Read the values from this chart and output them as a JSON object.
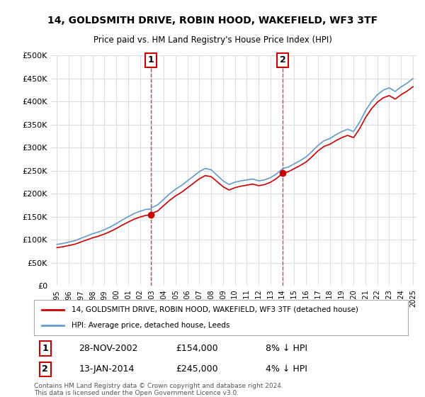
{
  "title": "14, GOLDSMITH DRIVE, ROBIN HOOD, WAKEFIELD, WF3 3TF",
  "subtitle": "Price paid vs. HM Land Registry's House Price Index (HPI)",
  "sale1_date": "28-NOV-2002",
  "sale1_price": 154000,
  "sale1_label": "1",
  "sale1_hpi_pct": "8% ↓ HPI",
  "sale2_date": "13-JAN-2014",
  "sale2_price": 245000,
  "sale2_label": "2",
  "sale2_hpi_pct": "4% ↓ HPI",
  "legend_line1": "14, GOLDSMITH DRIVE, ROBIN HOOD, WAKEFIELD, WF3 3TF (detached house)",
  "legend_line2": "HPI: Average price, detached house, Leeds",
  "footer1": "Contains HM Land Registry data © Crown copyright and database right 2024.",
  "footer2": "This data is licensed under the Open Government Licence v3.0.",
  "ylim": [
    0,
    500000
  ],
  "yticks": [
    0,
    50000,
    100000,
    150000,
    200000,
    250000,
    300000,
    350000,
    400000,
    450000,
    500000
  ],
  "red_color": "#cc0000",
  "blue_color": "#6699cc",
  "marker_box_color": "#cc0000",
  "bg_color": "#ffffff",
  "grid_color": "#dddddd"
}
